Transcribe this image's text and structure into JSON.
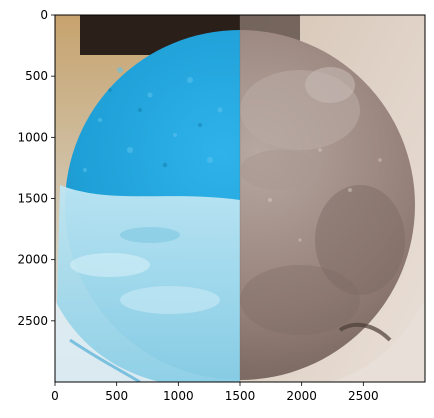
{
  "image_axes": {
    "image_width": 3000,
    "image_height": 3000,
    "x_ticks": [
      0,
      500,
      1000,
      1500,
      2000,
      2500
    ],
    "y_ticks": [
      0,
      500,
      1000,
      1500,
      2000,
      2500
    ],
    "x_tick_labels": [
      "0",
      "500",
      "1000",
      "1500",
      "2000",
      "2500"
    ],
    "y_tick_labels": [
      "0",
      "500",
      "1000",
      "1500",
      "2000",
      "2500"
    ]
  },
  "photo": {
    "subject": "scoop of ice cream, left half blue and light-blue, right half brown",
    "colors": {
      "blue_dark": "#1e9fd6",
      "blue_light": "#9fd8ec",
      "brown": "#8e7c74",
      "brown_light": "#b3a39b",
      "background_beige": "#d8c9b5",
      "background_dark": "#3a2b22"
    }
  }
}
